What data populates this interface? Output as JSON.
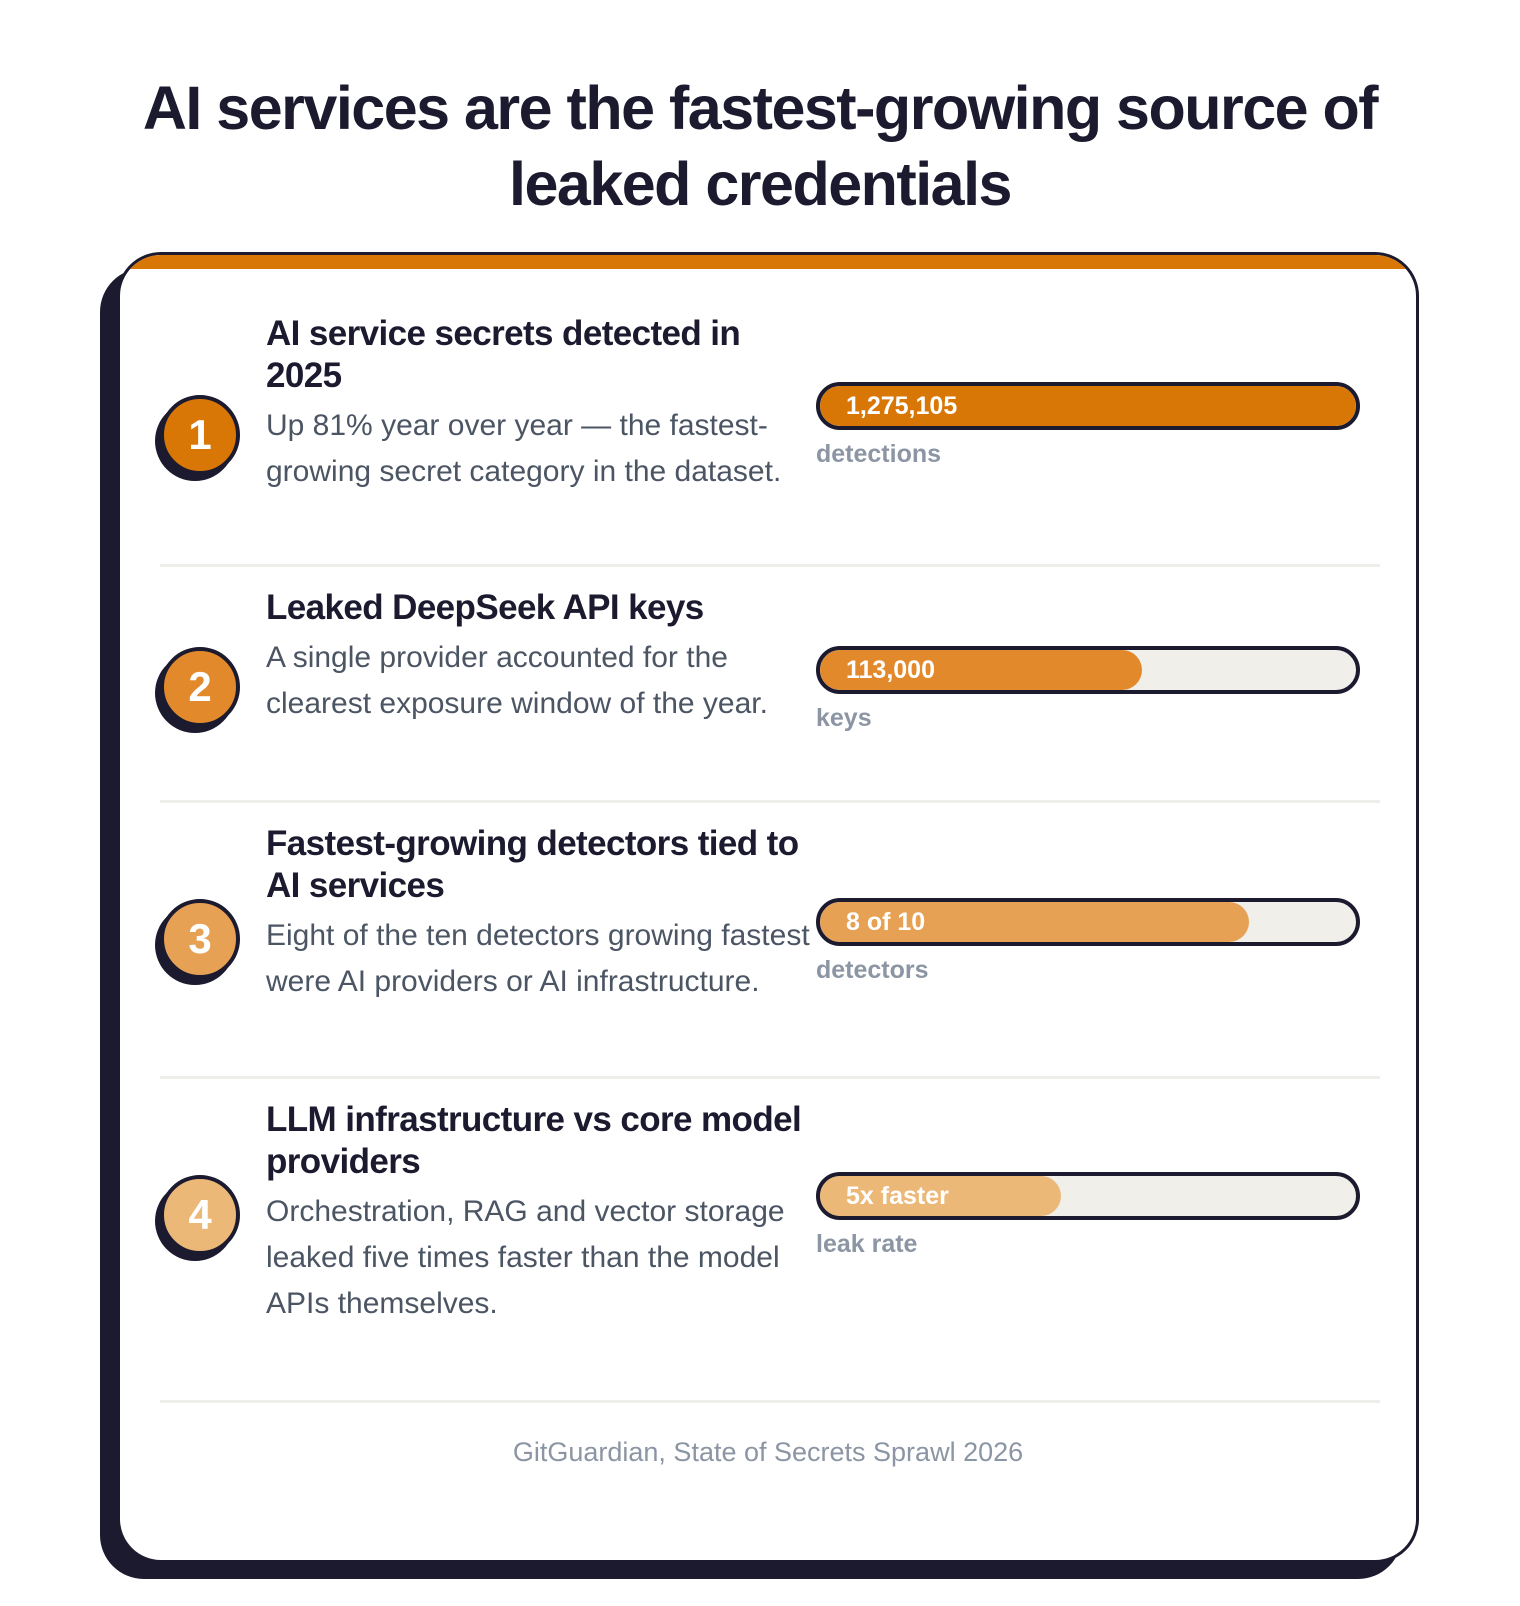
{
  "chart_data": {
    "type": "bar",
    "title": "AI services are the fastest-growing source of leaked credentials",
    "source": "GitGuardian, State of Secrets Sprawl 2026",
    "rows": [
      {
        "number": "1",
        "heading": "AI service secrets detected in 2025",
        "description": "Up 81% year over year — the fastest-growing secret category in the dataset.",
        "value_label": "1,275,105",
        "unit": "detections",
        "fill_fraction": 1.0,
        "color": "#d97706"
      },
      {
        "number": "2",
        "heading": "Leaked DeepSeek API keys",
        "description": "A single provider accounted for the clearest exposure window of the year.",
        "value_label": "113,000",
        "unit": "keys",
        "fill_fraction": 0.6,
        "color": "#e28a2b"
      },
      {
        "number": "3",
        "heading": "Fastest-growing detectors tied to AI services",
        "description": "Eight of the ten detectors growing fastest were AI providers or AI infrastructure.",
        "value_label": "8 of 10",
        "unit": "detectors",
        "fill_fraction": 0.8,
        "color": "#e6a155"
      },
      {
        "number": "4",
        "heading": "LLM infrastructure vs core model providers",
        "description": "Orchestration, RAG and vector storage leaked five times faster than the model APIs themselves.",
        "value_label": "5x faster",
        "unit": "leak rate",
        "fill_fraction": 0.45,
        "color": "#ecb878"
      }
    ]
  }
}
